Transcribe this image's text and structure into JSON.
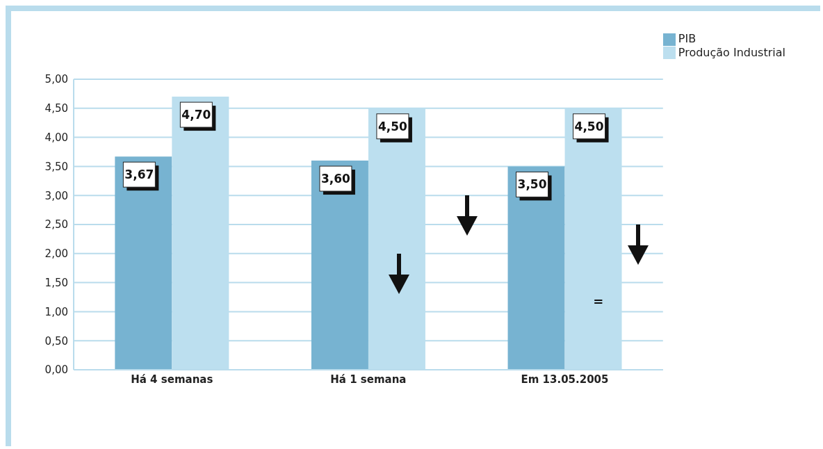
{
  "chart_data": {
    "type": "bar",
    "categories": [
      "Há 4 semanas",
      "Há 1 semana",
      "Em 13.05.2005"
    ],
    "series": [
      {
        "name": "PIB",
        "color": "#77b3d1",
        "values": [
          3.67,
          3.6,
          3.5
        ],
        "value_labels": [
          "3,67",
          "3,60",
          "3,50"
        ]
      },
      {
        "name": "Produção Industrial",
        "color": "#bcdfef",
        "values": [
          4.7,
          4.5,
          4.5
        ],
        "value_labels": [
          "4,70",
          "4,50",
          "4,50"
        ]
      }
    ],
    "ylim": [
      0,
      5
    ],
    "yticks": [
      {
        "value": 0,
        "label": "0,00"
      },
      {
        "value": 0.5,
        "label": "0,50"
      },
      {
        "value": 1,
        "label": "1,00"
      },
      {
        "value": 1.5,
        "label": "1,50"
      },
      {
        "value": 2,
        "label": "2,00"
      },
      {
        "value": 2.5,
        "label": "2,50"
      },
      {
        "value": 3,
        "label": "3,00"
      },
      {
        "value": 3.5,
        "label": "3,50"
      },
      {
        "value": 4,
        "label": "4,00"
      },
      {
        "value": 4.5,
        "label": "4,50"
      },
      {
        "value": 5,
        "label": "5,00"
      }
    ],
    "grid": "y",
    "legend": "top right",
    "annotations": [
      {
        "text": "=",
        "x": "Em 13.05.2005",
        "y": 1.1
      }
    ]
  }
}
